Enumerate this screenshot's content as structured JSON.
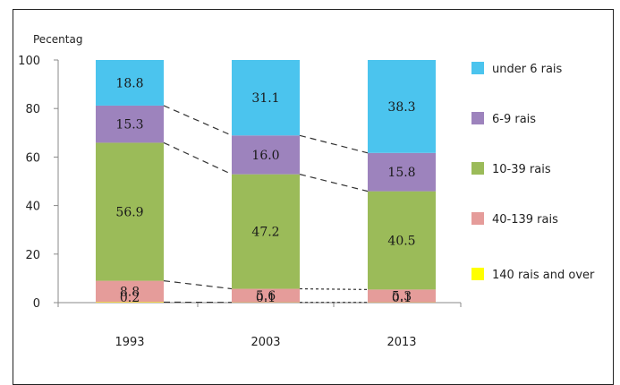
{
  "chart_data": {
    "type": "bar",
    "stacked": true,
    "ylabel": "Pecentag",
    "ylim": [
      0,
      100
    ],
    "yticks": [
      0,
      20,
      40,
      60,
      80,
      100
    ],
    "categories": [
      "1993",
      "2003",
      "2013"
    ],
    "series": [
      {
        "name": "140 rais and over",
        "color": "#ffff00",
        "values": [
          0.2,
          0.1,
          0.1
        ]
      },
      {
        "name": "40-139 rais",
        "color": "#e59c9a",
        "values": [
          8.8,
          5.6,
          5.3
        ]
      },
      {
        "name": "10-39 rais",
        "color": "#9bbb59",
        "values": [
          56.9,
          47.2,
          40.5
        ]
      },
      {
        "name": "6-9 rais",
        "color": "#9d83bd",
        "values": [
          15.3,
          16.0,
          15.8
        ]
      },
      {
        "name": "under 6 rais",
        "color": "#4bc4ee",
        "values": [
          18.8,
          31.1,
          38.3
        ]
      }
    ],
    "segment_labels": [
      [
        "0.2",
        "8.8",
        "56.9",
        "15.3",
        "18.8"
      ],
      [
        "0.1",
        "5.6",
        "47.2",
        "16.0",
        "31.1"
      ],
      [
        "0.1",
        "5.3",
        "40.5",
        "15.8",
        "38.3"
      ]
    ],
    "legend": {
      "position": "right",
      "order": [
        "under 6 rais",
        "6-9 rais",
        "10-39 rais",
        "40-139 rais",
        "140 rais and over"
      ]
    }
  }
}
